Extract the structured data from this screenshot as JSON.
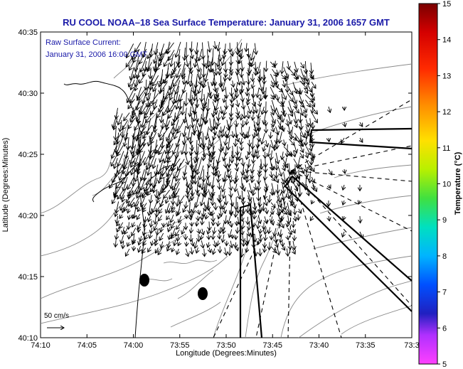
{
  "header": {
    "title": "RU COOL  NOAA–18  Sea Surface Temperature:  January 31, 2006 1657 GMT"
  },
  "overlay": {
    "line1": "Raw Surface Current:",
    "line2": "January 31, 2006 16:00 GMT"
  },
  "axes": {
    "xlabel": "Longitude (Degrees:Minutes)",
    "ylabel": "Latitude (Degrees:Minutes)",
    "xticks": [
      "74:10",
      "74:05",
      "74:00",
      "73:55",
      "73:50",
      "73:45",
      "73:40",
      "73:35",
      "73:3"
    ],
    "yticks": [
      "40:35",
      "40:30",
      "40:25",
      "40:20",
      "40:15",
      "40:10"
    ]
  },
  "colorbar": {
    "label": "Temperature (°C)",
    "ticks": [
      "15",
      "14",
      "13",
      "12",
      "11",
      "10",
      "9",
      "8",
      "7",
      "6",
      "5"
    ],
    "min": 5,
    "max": 15
  },
  "scale": {
    "label": "50 cm/s"
  },
  "colors": {
    "title": "#1a1aa8",
    "contour": "#8a8a8a",
    "vector": "#000000"
  }
}
